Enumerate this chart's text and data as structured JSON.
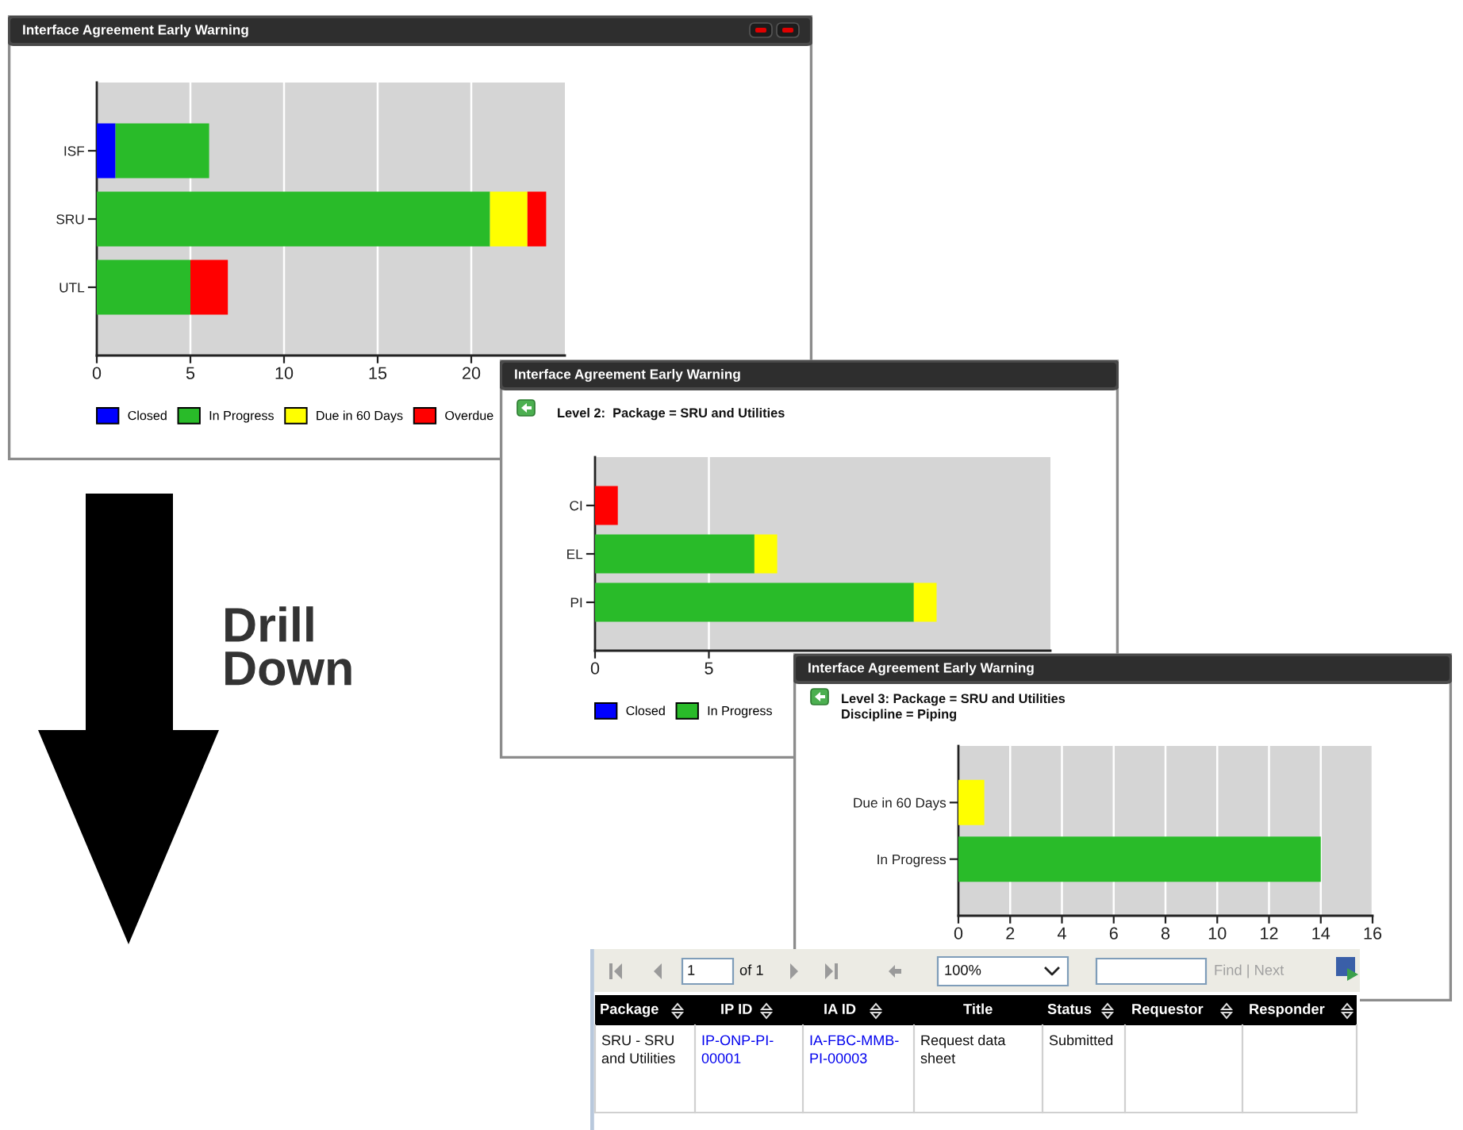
{
  "chart_data": [
    {
      "type": "bar",
      "title": "Interface Agreement Early Warning",
      "orientation": "horizontal",
      "stacked": true,
      "categories": [
        "ISF",
        "SRU",
        "UTL"
      ],
      "series": [
        {
          "name": "Closed",
          "color": "#0000ff",
          "values": [
            1,
            null,
            null
          ]
        },
        {
          "name": "In Progress",
          "color": "#29bb29",
          "values": [
            5,
            21,
            5
          ]
        },
        {
          "name": "Due in 60 Days",
          "color": "#ffff00",
          "values": [
            null,
            2,
            null
          ]
        },
        {
          "name": "Overdue",
          "color": "#ff0000",
          "values": [
            null,
            1,
            2
          ]
        }
      ],
      "xlim": [
        0,
        25
      ],
      "xticks": [
        0,
        5,
        10,
        15,
        20
      ],
      "grid": "x",
      "legend": "bottom",
      "annotations": [
        "Drill\nDown"
      ]
    },
    {
      "type": "bar",
      "title": "Interface Agreement Early Warning",
      "subtitle": "Level 2:  Package = SRU and Utilities",
      "orientation": "horizontal",
      "stacked": true,
      "categories": [
        "CI",
        "EL",
        "PI"
      ],
      "series": [
        {
          "name": "Closed",
          "color": "#0000ff",
          "values": [
            null,
            null,
            null
          ]
        },
        {
          "name": "In Progress",
          "color": "#29bb29",
          "values": [
            null,
            7,
            14
          ]
        },
        {
          "color": "#ffff00",
          "values": [
            null,
            1,
            1
          ]
        },
        {
          "color": "#ff0000",
          "values": [
            1,
            null,
            null
          ]
        }
      ],
      "xlim": [
        0,
        20
      ],
      "xticks": [
        0,
        5
      ],
      "grid": "x",
      "legend": "bottom"
    },
    {
      "type": "bar",
      "title": "Interface Agreement Early Warning",
      "subtitle": "Level 3: Package = SRU and Utilities\nDiscipline = Piping",
      "orientation": "horizontal",
      "categories": [
        "Due in 60 Days",
        "In Progress"
      ],
      "values": [
        1,
        14
      ],
      "colors": [
        "#ffff00",
        "#29bb29"
      ],
      "xlim": [
        0,
        16
      ],
      "xticks": [
        0,
        2,
        4,
        6,
        8,
        10,
        12,
        14,
        16
      ],
      "grid": "x"
    },
    {
      "type": "other",
      "categories": [
        "Package",
        "IP ID",
        "IA ID",
        "Title",
        "Status",
        "Requestor",
        "Responder"
      ],
      "cell_labels": [
        [
          "SRU - SRU\nand Utilities",
          "IP-ONP-PI-\n00001",
          "IA-FBC-MMB-\nPI-00003",
          "Request data\nsheet",
          "Submitted",
          null,
          null
        ]
      ],
      "annotations": [
        "1",
        "of 1",
        "100%",
        "Find | Next"
      ]
    }
  ]
}
